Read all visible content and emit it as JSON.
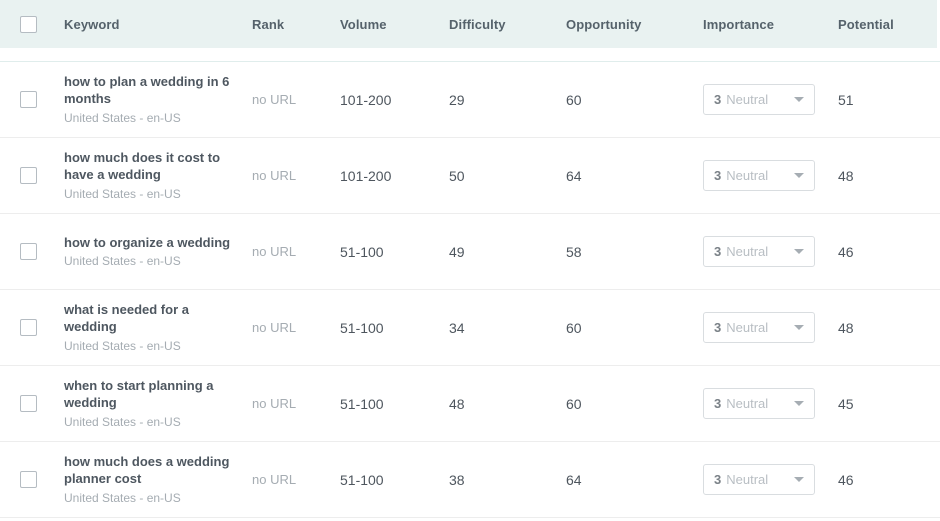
{
  "colors": {
    "header_bg": "#e9f2f1",
    "header_text": "#55626b",
    "keyword_text": "#4e5760",
    "muted_text": "#a5acb2",
    "number_text": "#4e565e",
    "row_divider": "#ededed",
    "dropdown_border": "#d9dde0"
  },
  "table": {
    "columns": [
      "Keyword",
      "Rank",
      "Volume",
      "Difficulty",
      "Opportunity",
      "Importance",
      "Potential"
    ],
    "rows": [
      {
        "keyword": "how to plan a wedding in 6 months",
        "locale": "United States - en-US",
        "rank": "no URL",
        "volume": "101-200",
        "difficulty": "29",
        "opportunity": "60",
        "importance_value": "3",
        "importance_label": "Neutral",
        "potential": "51"
      },
      {
        "keyword": "how much does it cost to have a wedding",
        "locale": "United States - en-US",
        "rank": "no URL",
        "volume": "101-200",
        "difficulty": "50",
        "opportunity": "64",
        "importance_value": "3",
        "importance_label": "Neutral",
        "potential": "48"
      },
      {
        "keyword": "how to organize a wedding",
        "locale": "United States - en-US",
        "rank": "no URL",
        "volume": "51-100",
        "difficulty": "49",
        "opportunity": "58",
        "importance_value": "3",
        "importance_label": "Neutral",
        "potential": "46"
      },
      {
        "keyword": "what is needed for a wedding",
        "locale": "United States - en-US",
        "rank": "no URL",
        "volume": "51-100",
        "difficulty": "34",
        "opportunity": "60",
        "importance_value": "3",
        "importance_label": "Neutral",
        "potential": "48"
      },
      {
        "keyword": "when to start planning a wedding",
        "locale": "United States - en-US",
        "rank": "no URL",
        "volume": "51-100",
        "difficulty": "48",
        "opportunity": "60",
        "importance_value": "3",
        "importance_label": "Neutral",
        "potential": "45"
      },
      {
        "keyword": "how much does a wedding planner cost",
        "locale": "United States - en-US",
        "rank": "no URL",
        "volume": "51-100",
        "difficulty": "38",
        "opportunity": "64",
        "importance_value": "3",
        "importance_label": "Neutral",
        "potential": "46"
      }
    ]
  }
}
